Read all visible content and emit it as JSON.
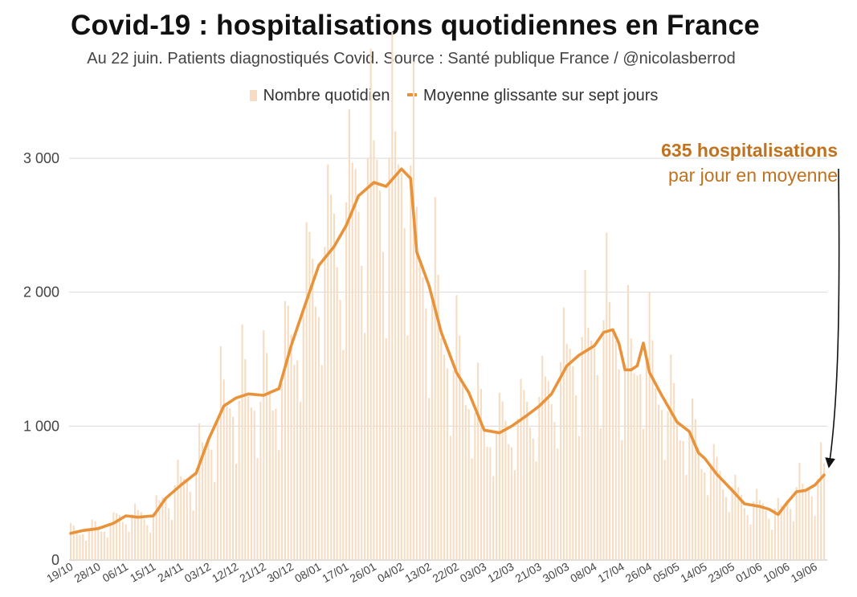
{
  "chart_data": {
    "type": "bar",
    "title": "Covid-19 : hospitalisations quotidiennes en France",
    "subtitle": "Au 22 juin. Patients diagnostiqués Covid. Source : Santé publique France / @nicolasberrod",
    "legend": {
      "position": "top-center",
      "bars_label": "Nombre quotidien",
      "line_label": "Moyenne glissante sur sept jours"
    },
    "colors": {
      "bars": "#f6dcc2",
      "line": "#e8923a",
      "annotation": "#c1721f",
      "grid": "#d9d9d9",
      "arrow": "#111111"
    },
    "ylim": [
      0,
      3000
    ],
    "y_ticks": [
      {
        "value": 0,
        "label": "0"
      },
      {
        "value": 1000,
        "label": "1 000"
      },
      {
        "value": 2000,
        "label": "2 000"
      },
      {
        "value": 3000,
        "label": "3 000"
      }
    ],
    "grid": true,
    "x_start": "2020-10-19",
    "x_tick_labels": [
      "19/10",
      "28/10",
      "06/11",
      "15/11",
      "24/11",
      "03/12",
      "12/12",
      "21/12",
      "30/12",
      "08/01",
      "17/01",
      "26/01",
      "04/02",
      "13/02",
      "22/02",
      "03/03",
      "12/03",
      "21/03",
      "30/03",
      "08/04",
      "17/04",
      "26/04",
      "05/05",
      "14/05",
      "23/05",
      "01/06",
      "10/06",
      "19/06"
    ],
    "series": [
      {
        "name": "Moyenne glissante sur sept jours",
        "kind": "line",
        "points": [
          [
            "19/10",
            200
          ],
          [
            "23/10",
            220
          ],
          [
            "28/10",
            235
          ],
          [
            "02/11",
            275
          ],
          [
            "06/11",
            330
          ],
          [
            "10/11",
            320
          ],
          [
            "15/11",
            330
          ],
          [
            "19/11",
            460
          ],
          [
            "24/11",
            560
          ],
          [
            "29/11",
            650
          ],
          [
            "03/12",
            900
          ],
          [
            "08/12",
            1150
          ],
          [
            "12/12",
            1210
          ],
          [
            "16/12",
            1240
          ],
          [
            "21/12",
            1230
          ],
          [
            "26/12",
            1280
          ],
          [
            "30/12",
            1600
          ],
          [
            "03/01",
            1870
          ],
          [
            "08/01",
            2200
          ],
          [
            "13/01",
            2340
          ],
          [
            "17/01",
            2500
          ],
          [
            "21/01",
            2720
          ],
          [
            "26/01",
            2820
          ],
          [
            "30/01",
            2790
          ],
          [
            "04/02",
            2920
          ],
          [
            "07/02",
            2850
          ],
          [
            "09/02",
            2300
          ],
          [
            "13/02",
            2050
          ],
          [
            "17/02",
            1700
          ],
          [
            "22/02",
            1400
          ],
          [
            "26/02",
            1250
          ],
          [
            "03/03",
            970
          ],
          [
            "08/03",
            950
          ],
          [
            "12/03",
            1000
          ],
          [
            "17/03",
            1080
          ],
          [
            "21/03",
            1150
          ],
          [
            "25/03",
            1240
          ],
          [
            "30/03",
            1450
          ],
          [
            "03/04",
            1530
          ],
          [
            "08/04",
            1600
          ],
          [
            "11/04",
            1700
          ],
          [
            "14/04",
            1720
          ],
          [
            "16/04",
            1620
          ],
          [
            "18/04",
            1420
          ],
          [
            "20/04",
            1420
          ],
          [
            "22/04",
            1450
          ],
          [
            "24/04",
            1620
          ],
          [
            "26/04",
            1400
          ],
          [
            "30/04",
            1230
          ],
          [
            "05/05",
            1030
          ],
          [
            "09/05",
            960
          ],
          [
            "12/05",
            800
          ],
          [
            "14/05",
            760
          ],
          [
            "18/05",
            640
          ],
          [
            "23/05",
            520
          ],
          [
            "27/05",
            420
          ],
          [
            "01/06",
            400
          ],
          [
            "04/06",
            380
          ],
          [
            "07/06",
            340
          ],
          [
            "10/06",
            430
          ],
          [
            "13/06",
            510
          ],
          [
            "16/06",
            520
          ],
          [
            "19/06",
            560
          ],
          [
            "22/06",
            635
          ]
        ]
      },
      {
        "name": "Nombre quotidien",
        "kind": "bar",
        "description": "Daily values scatter around the 7-day average with a weekly pattern: weekday values above the average (peaks near 3 500 in late January / early February), weekend values well below (around 50% of the average).",
        "weekly_multipliers": [
          1.32,
          1.16,
          1.06,
          0.97,
          0.88,
          0.62,
          0.99
        ]
      }
    ],
    "annotation": {
      "strong": "635 hospitalisations",
      "normal": "par jour en moyenne",
      "value": 635,
      "date": "22/06"
    }
  }
}
